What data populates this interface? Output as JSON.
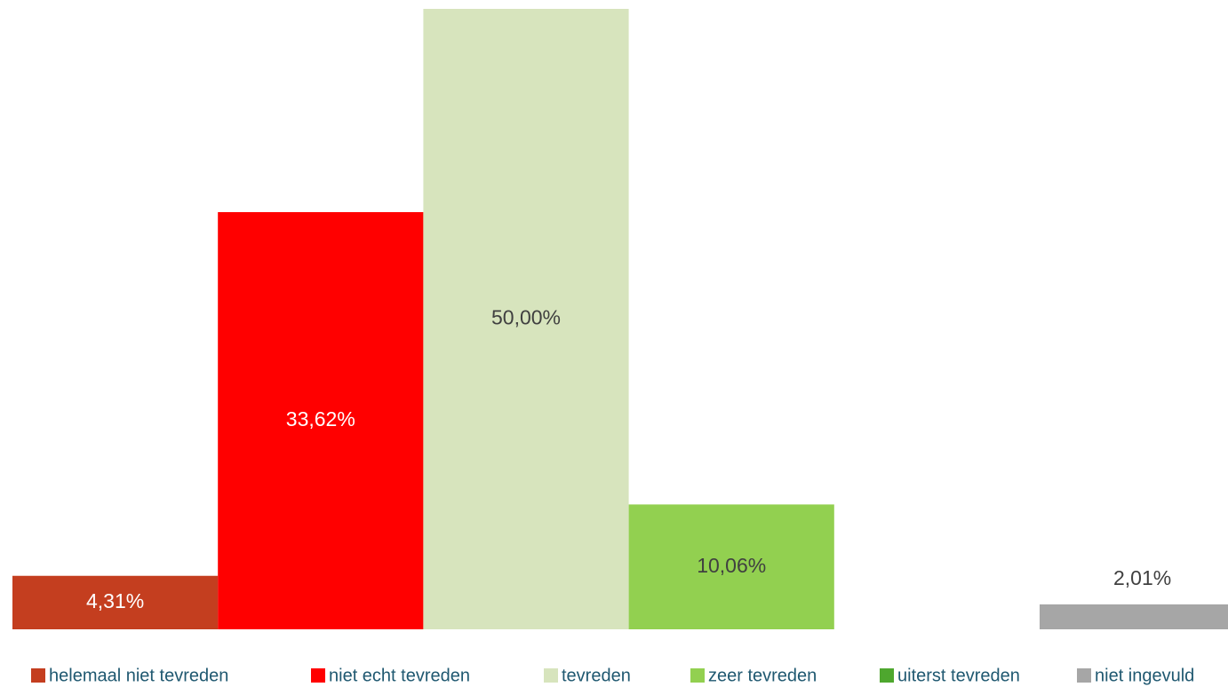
{
  "chart_data": {
    "type": "bar",
    "categories": [
      "helemaal niet tevreden",
      "niet echt tevreden",
      "tevreden",
      "zeer tevreden",
      "uiterst tevreden",
      "niet ingevuld"
    ],
    "values": [
      4.31,
      33.62,
      50.0,
      10.06,
      null,
      2.01
    ],
    "value_labels": [
      "4,31%",
      "33,62%",
      "50,00%",
      "10,06%",
      null,
      "2,01%"
    ],
    "colors": [
      "#c43e1f",
      "#ff0000",
      "#d7e4bd",
      "#92d050",
      "#4ea72e",
      "#a6a6a6"
    ],
    "ylim": [
      0,
      50
    ],
    "legend": "bottom"
  }
}
